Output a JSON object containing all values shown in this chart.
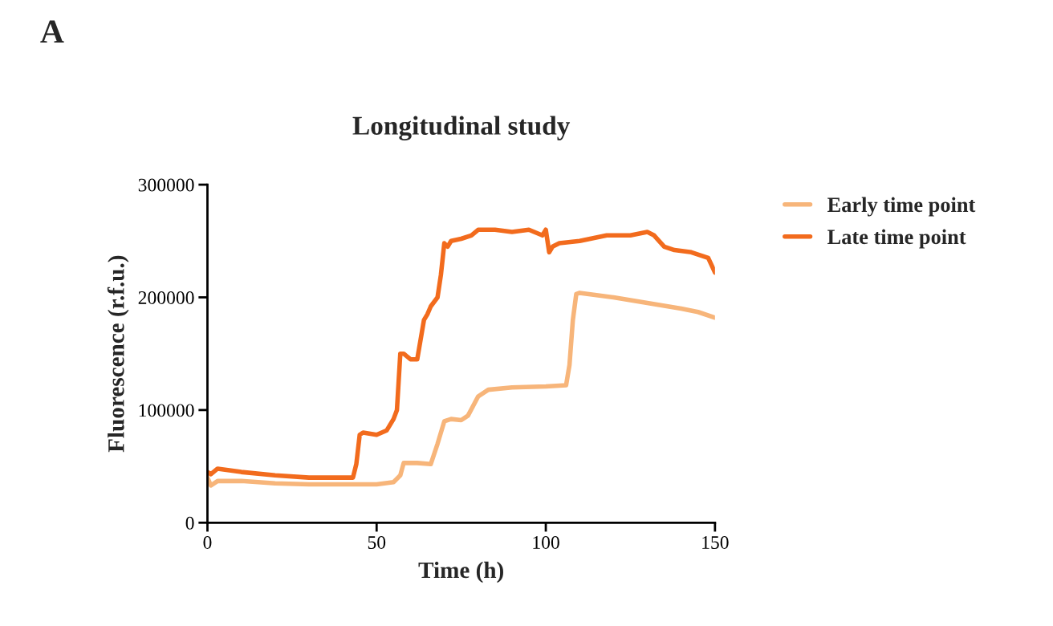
{
  "chart_data": {
    "type": "line",
    "title": "Longitudinal study",
    "xlabel": "Time (h)",
    "ylabel": "Fluorescence (r.f.u.)",
    "annotations": [
      "A"
    ],
    "xlim": [
      0,
      150
    ],
    "ylim": [
      0,
      300000
    ],
    "xticks": [
      0,
      50,
      100,
      150
    ],
    "yticks": [
      0,
      100000,
      200000,
      300000
    ],
    "grid": false,
    "legend": "right",
    "marker": "none",
    "line_style": "solid",
    "series": [
      {
        "name": "Early time point",
        "color": "#f7b57a",
        "x": [
          0,
          1,
          3,
          10,
          20,
          30,
          40,
          50,
          55,
          57,
          58,
          62,
          66,
          68,
          70,
          72,
          75,
          77,
          80,
          83,
          90,
          100,
          106,
          107,
          108,
          109,
          110,
          115,
          120,
          130,
          140,
          145,
          150
        ],
        "values": [
          40000,
          33000,
          37000,
          37000,
          35000,
          34000,
          34000,
          34000,
          36000,
          42000,
          53000,
          53000,
          52000,
          70000,
          90000,
          92000,
          91000,
          95000,
          112000,
          118000,
          120000,
          121000,
          122000,
          140000,
          180000,
          203000,
          204000,
          202000,
          200000,
          195000,
          190000,
          187000,
          182000
        ]
      },
      {
        "name": "Late time point",
        "color": "#f26b1d",
        "x": [
          0,
          1,
          3,
          10,
          20,
          30,
          40,
          43,
          44,
          45,
          46,
          50,
          53,
          55,
          56,
          57,
          58,
          60,
          62,
          64,
          65,
          66,
          68,
          69,
          70,
          71,
          72,
          75,
          78,
          80,
          85,
          90,
          95,
          99,
          100,
          101,
          102,
          104,
          110,
          118,
          125,
          130,
          132,
          135,
          138,
          143,
          148,
          150
        ],
        "values": [
          45000,
          43000,
          48000,
          45000,
          42000,
          40000,
          40000,
          40000,
          52000,
          78000,
          80000,
          78000,
          82000,
          92000,
          100000,
          150000,
          150000,
          145000,
          145000,
          180000,
          185000,
          192000,
          200000,
          220000,
          248000,
          245000,
          250000,
          252000,
          255000,
          260000,
          260000,
          258000,
          260000,
          255000,
          260000,
          240000,
          245000,
          248000,
          250000,
          255000,
          255000,
          258000,
          255000,
          245000,
          242000,
          240000,
          235000,
          222000
        ]
      }
    ]
  }
}
